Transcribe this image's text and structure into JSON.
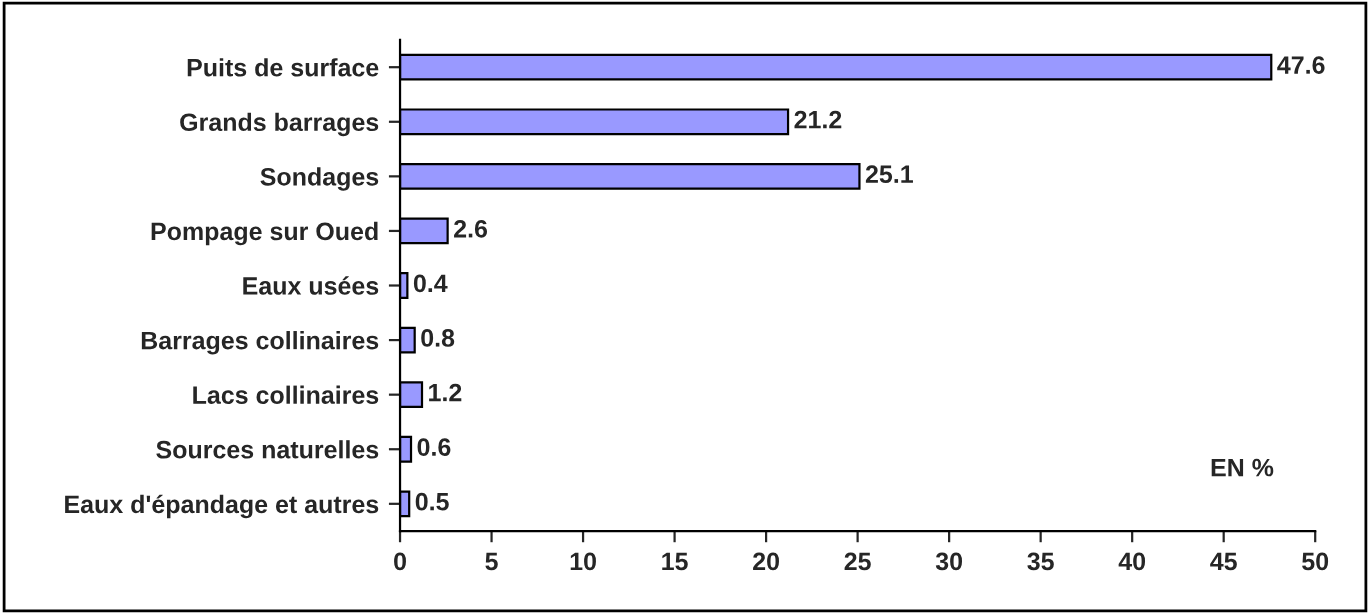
{
  "chart_data": {
    "type": "bar",
    "orientation": "horizontal",
    "categories": [
      "Puits de surface",
      "Grands barrages",
      "Sondages",
      "Pompage sur Oued",
      "Eaux usées",
      "Barrages collinaires",
      "Lacs collinaires",
      "Sources naturelles",
      "Eaux d'épandage et autres"
    ],
    "values": [
      47.6,
      21.2,
      25.1,
      2.6,
      0.4,
      0.8,
      1.2,
      0.6,
      0.5
    ],
    "color": "#9999ff",
    "xlim": [
      0,
      50
    ],
    "xticks": [
      0,
      5,
      10,
      15,
      20,
      25,
      30,
      35,
      40,
      45,
      50
    ],
    "data_labels": true,
    "grid": false,
    "legend": false,
    "annotations": [
      "EN %"
    ]
  }
}
